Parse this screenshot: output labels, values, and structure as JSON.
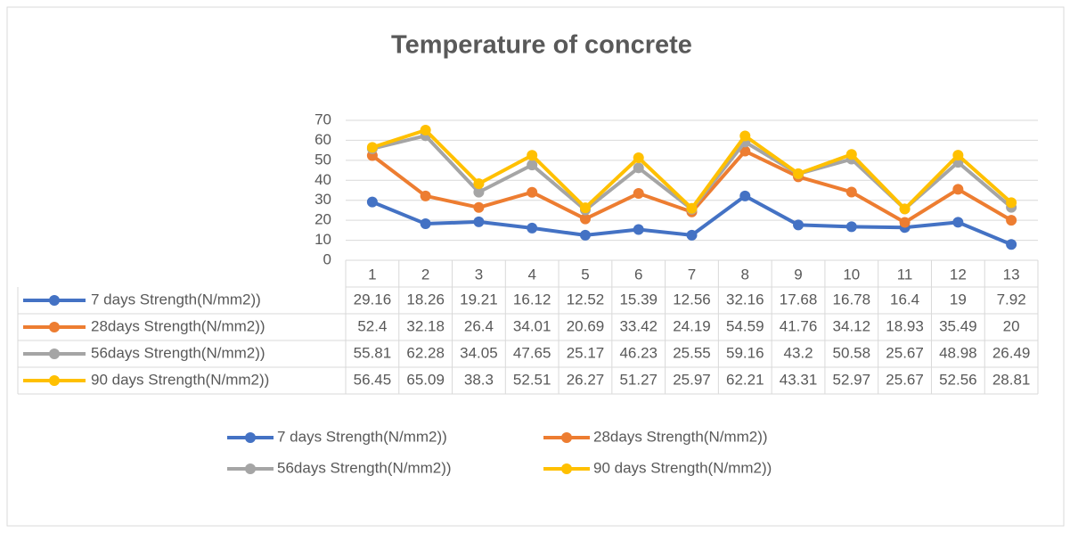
{
  "chart_data": {
    "type": "line",
    "title": "Temperature of concrete",
    "categories": [
      "1",
      "2",
      "3",
      "4",
      "5",
      "6",
      "7",
      "8",
      "9",
      "10",
      "11",
      "12",
      "13"
    ],
    "series": [
      {
        "name": "7 days Strength(N/mm2))",
        "color": "#4472c4",
        "values": [
          29.16,
          18.26,
          19.21,
          16.12,
          12.52,
          15.39,
          12.56,
          32.16,
          17.68,
          16.78,
          16.4,
          19,
          7.92
        ]
      },
      {
        "name": "28days Strength(N/mm2))",
        "color": "#ed7d31",
        "values": [
          52.4,
          32.18,
          26.4,
          34.01,
          20.69,
          33.42,
          24.19,
          54.59,
          41.76,
          34.12,
          18.93,
          35.49,
          20
        ]
      },
      {
        "name": "56days Strength(N/mm2))",
        "color": "#a5a5a5",
        "values": [
          55.81,
          62.28,
          34.05,
          47.65,
          25.17,
          46.23,
          25.55,
          59.16,
          43.2,
          50.58,
          25.67,
          48.98,
          26.49
        ]
      },
      {
        "name": "90 days Strength(N/mm2))",
        "color": "#ffc000",
        "values": [
          56.45,
          65.09,
          38.3,
          52.51,
          26.27,
          51.27,
          25.97,
          62.21,
          43.31,
          52.97,
          25.67,
          52.56,
          28.81
        ]
      }
    ],
    "ylim": [
      0,
      70
    ],
    "yticks": [
      0,
      10,
      20,
      30,
      40,
      50,
      60,
      70
    ],
    "grid": true,
    "data_table": true,
    "legend": "bottom"
  }
}
